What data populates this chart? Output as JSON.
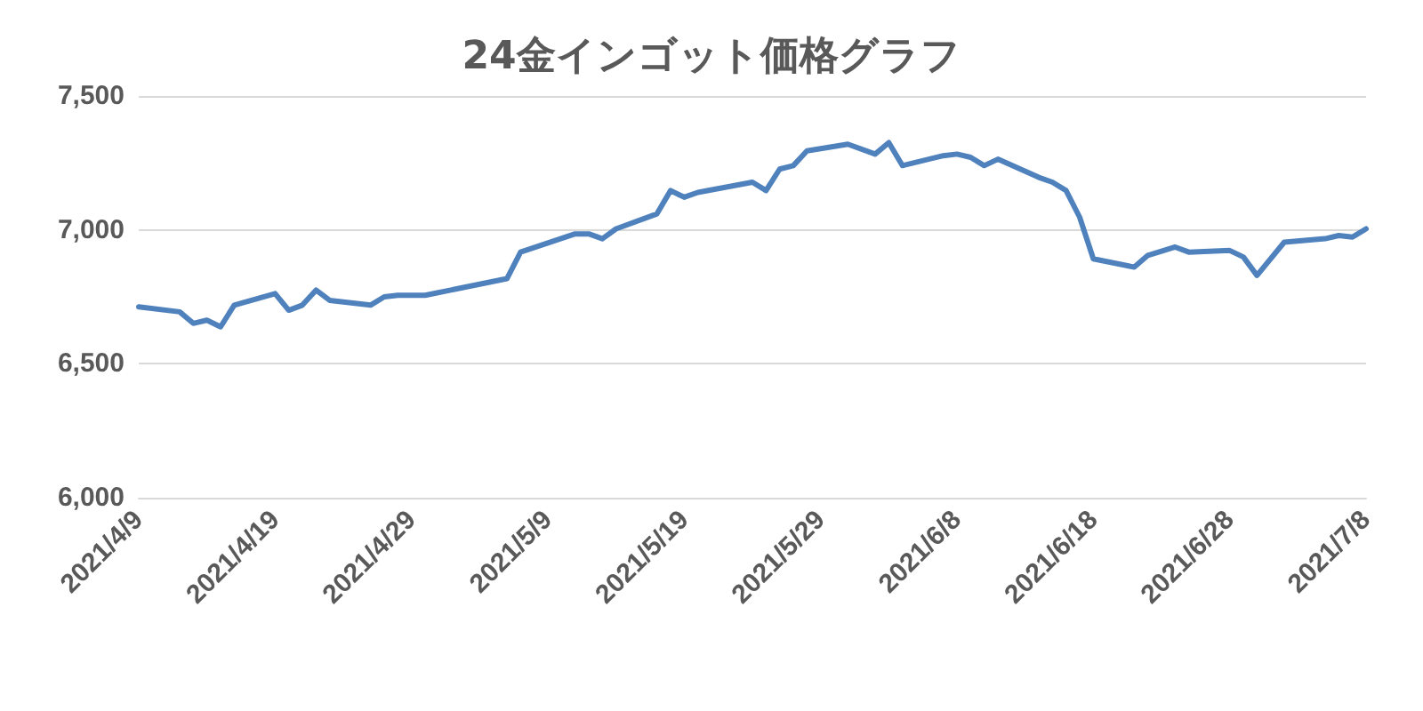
{
  "chart_data": {
    "type": "line",
    "title": "24金インゴット価格グラフ",
    "x": [
      "2021-04-09",
      "2021-04-12",
      "2021-04-13",
      "2021-04-14",
      "2021-04-15",
      "2021-04-16",
      "2021-04-19",
      "2021-04-20",
      "2021-04-21",
      "2021-04-22",
      "2021-04-23",
      "2021-04-26",
      "2021-04-27",
      "2021-04-28",
      "2021-04-30",
      "2021-05-06",
      "2021-05-07",
      "2021-05-11",
      "2021-05-12",
      "2021-05-13",
      "2021-05-14",
      "2021-05-17",
      "2021-05-18",
      "2021-05-19",
      "2021-05-20",
      "2021-05-24",
      "2021-05-25",
      "2021-05-26",
      "2021-05-27",
      "2021-05-28",
      "2021-05-31",
      "2021-06-02",
      "2021-06-03",
      "2021-06-04",
      "2021-06-07",
      "2021-06-08",
      "2021-06-09",
      "2021-06-10",
      "2021-06-11",
      "2021-06-14",
      "2021-06-15",
      "2021-06-16",
      "2021-06-17",
      "2021-06-18",
      "2021-06-21",
      "2021-06-22",
      "2021-06-24",
      "2021-06-25",
      "2021-06-28",
      "2021-06-29",
      "2021-06-30",
      "2021-07-02",
      "2021-07-05",
      "2021-07-06",
      "2021-07-07",
      "2021-07-08"
    ],
    "series": [
      {
        "color": "#4f81bd",
        "values": [
          6713,
          6694,
          6651,
          6663,
          6638,
          6719,
          6762,
          6700,
          6719,
          6775,
          6737,
          6719,
          6750,
          6756,
          6756,
          6818,
          6917,
          6985,
          6985,
          6967,
          7004,
          7060,
          7147,
          7122,
          7140,
          7178,
          7147,
          7227,
          7240,
          7295,
          7320,
          7283,
          7326,
          7240,
          7277,
          7283,
          7271,
          7240,
          7264,
          7196,
          7178,
          7147,
          7047,
          6892,
          6861,
          6905,
          6936,
          6917,
          6923,
          6899,
          6830,
          6954,
          6967,
          6979,
          6973,
          7004
        ]
      }
    ],
    "xlim": [
      "2021-04-09",
      "2021-07-08"
    ],
    "xticks": [
      {
        "value": "2021-04-09",
        "label": "2021/4/9"
      },
      {
        "value": "2021-04-19",
        "label": "2021/4/19"
      },
      {
        "value": "2021-04-29",
        "label": "2021/4/29"
      },
      {
        "value": "2021-05-09",
        "label": "2021/5/9"
      },
      {
        "value": "2021-05-19",
        "label": "2021/5/19"
      },
      {
        "value": "2021-05-29",
        "label": "2021/5/29"
      },
      {
        "value": "2021-06-08",
        "label": "2021/6/8"
      },
      {
        "value": "2021-06-18",
        "label": "2021/6/18"
      },
      {
        "value": "2021-06-28",
        "label": "2021/6/28"
      },
      {
        "value": "2021-07-08",
        "label": "2021/7/8"
      }
    ],
    "ylim": [
      6000,
      7500
    ],
    "yticks": [
      {
        "value": 6000,
        "label": "6,000"
      },
      {
        "value": 6500,
        "label": "6,500"
      },
      {
        "value": 7000,
        "label": "7,000"
      },
      {
        "value": 7500,
        "label": "7,500"
      }
    ],
    "grid": "y",
    "marker": "none",
    "line_style": "solid"
  }
}
